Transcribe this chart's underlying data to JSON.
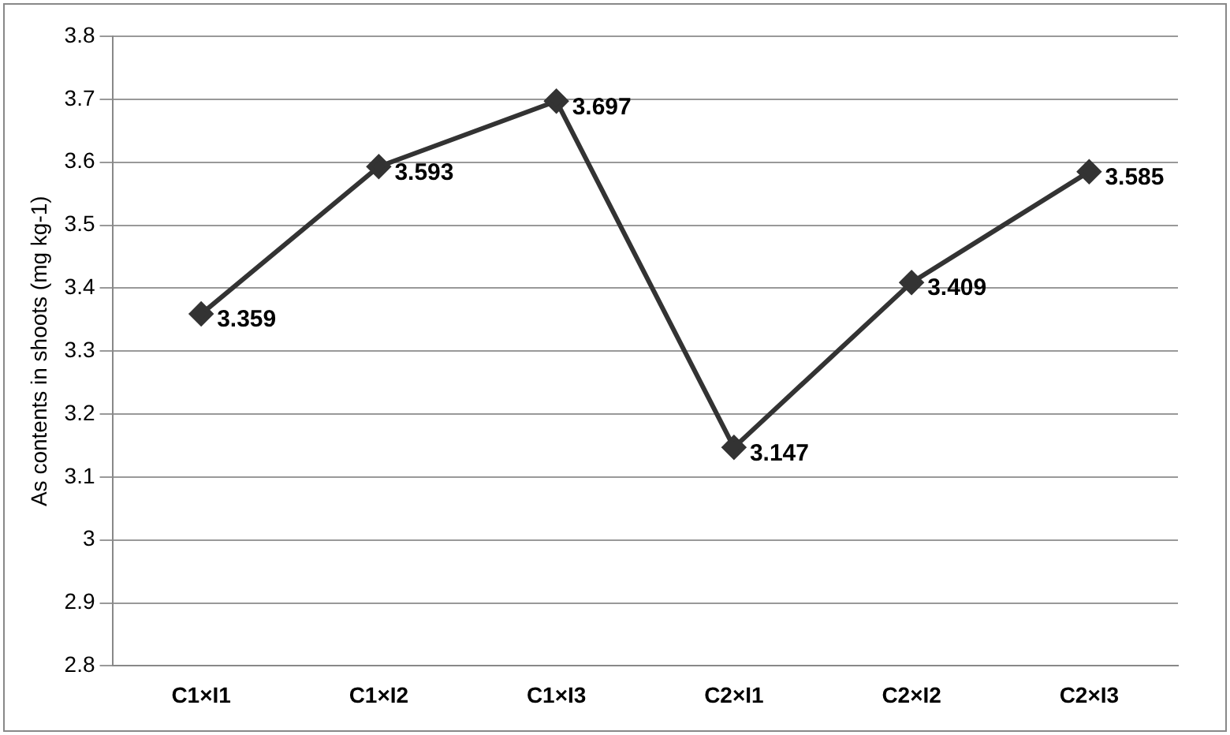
{
  "chart_data": {
    "type": "line",
    "ylabel": "As contents in shoots (mg kg-1)",
    "categories": [
      "C1×I1",
      "C1×I2",
      "C1×I3",
      "C2×I1",
      "C2×I2",
      "C2×I3"
    ],
    "series": [
      {
        "color": "#333333",
        "values": [
          3.359,
          3.593,
          3.697,
          3.147,
          3.409,
          3.585
        ]
      }
    ],
    "ylim": [
      2.8,
      3.8
    ],
    "yticks": [
      2.8,
      2.9,
      3,
      3.1,
      3.2,
      3.3,
      3.4,
      3.5,
      3.6,
      3.7,
      3.8
    ],
    "grid": "y",
    "legend": false,
    "marker": "diamond",
    "line_style": "solid",
    "data_labels": true
  }
}
